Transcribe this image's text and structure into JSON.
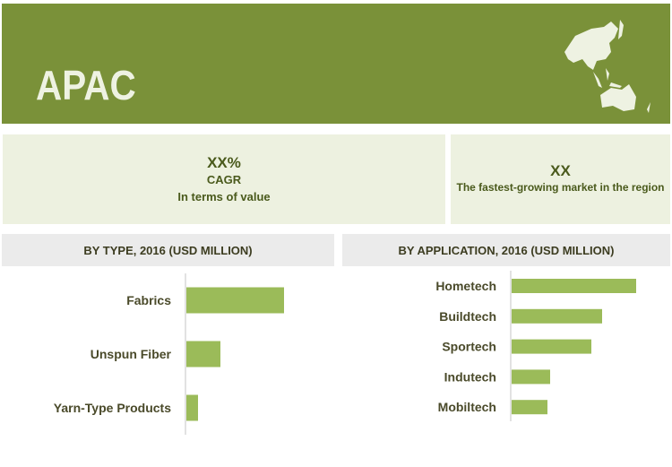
{
  "header": {
    "title": "APAC",
    "map_icon": "apac-map-icon"
  },
  "kpi_left": {
    "value": "XX%",
    "line1": "CAGR",
    "line2": "In terms of value"
  },
  "kpi_right": {
    "value": "XX",
    "line1": "The fastest-growing market in the region"
  },
  "colors": {
    "header": "#7a9139",
    "bar": "#9bbb59",
    "panel": "#edf1e0"
  },
  "chart_data": [
    {
      "type": "bar",
      "orientation": "horizontal",
      "title": "BY TYPE, 2016 (USD MILLION)",
      "categories": [
        "Fabrics",
        "Unspun Fiber",
        "Yarn-Type Products"
      ],
      "values": [
        109,
        38,
        13
      ]
    },
    {
      "type": "bar",
      "orientation": "horizontal",
      "title": "BY APPLICATION, 2016 (USD MILLION)",
      "categories": [
        "Hometech",
        "Buildtech",
        "Sportech",
        "Indutech",
        "Mobiltech"
      ],
      "values": [
        139,
        101,
        89,
        43,
        40
      ]
    }
  ]
}
